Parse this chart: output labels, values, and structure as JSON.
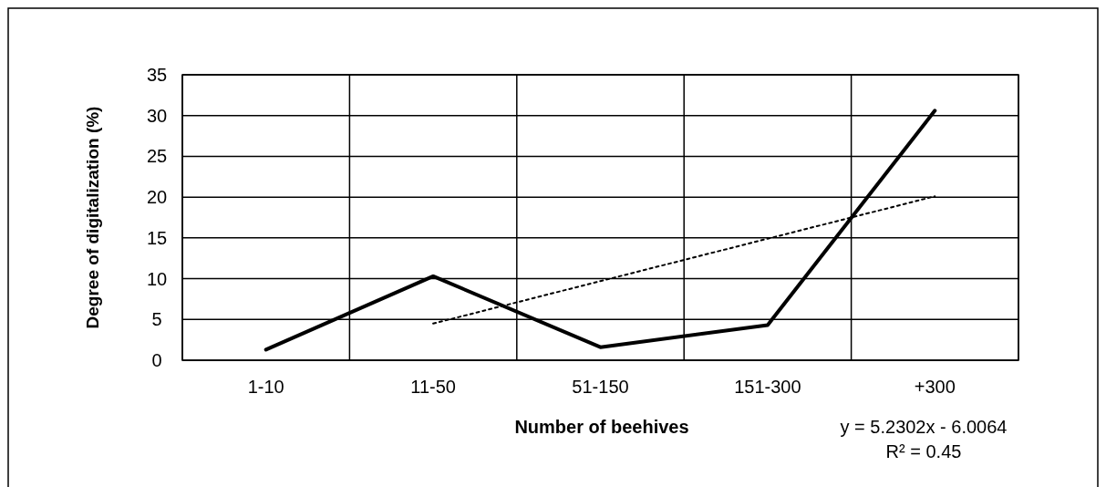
{
  "chart_data": {
    "type": "line",
    "xlabel": "Number of beehives",
    "ylabel": "Degree of digitalization (%)",
    "categories": [
      "1-10",
      "11-50",
      "51-150",
      "151-300",
      "+300"
    ],
    "series": [
      {
        "color": "#000000",
        "values": [
          1.3,
          10.3,
          1.6,
          4.3,
          30.6
        ],
        "line_style": "solid"
      },
      {
        "color": "#000000",
        "values": [
          null,
          4.5,
          9.7,
          14.9,
          20.1
        ],
        "line_style": "dotted"
      }
    ],
    "ylim": [
      0,
      35
    ],
    "yticks": [
      0,
      5,
      10,
      15,
      20,
      25,
      30,
      35
    ],
    "grid": true,
    "annotations": [
      "y = 5.2302x - 6.0064",
      "R² = 0.45"
    ]
  }
}
